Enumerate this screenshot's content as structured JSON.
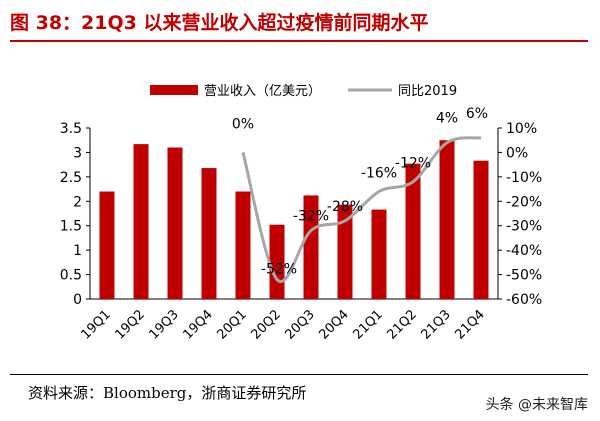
{
  "header": {
    "title": "图 38：21Q3 以来营业收入超过疫情前同期水平"
  },
  "footer": {
    "source": "资料来源：Bloomberg，浙商证券研究所",
    "watermark": "头条 @未来智库"
  },
  "chart_data": {
    "type": "bar",
    "categories": [
      "19Q1",
      "19Q2",
      "19Q3",
      "19Q4",
      "20Q1",
      "20Q2",
      "20Q3",
      "20Q4",
      "21Q1",
      "21Q2",
      "21Q3",
      "21Q4"
    ],
    "series": [
      {
        "name": "营业收入（亿美元）",
        "type": "bar",
        "axis": "left",
        "color": "#c00000",
        "values": [
          2.2,
          3.17,
          3.1,
          2.68,
          2.2,
          1.52,
          2.12,
          1.93,
          1.83,
          2.77,
          3.25,
          2.83
        ]
      },
      {
        "name": "同比2019",
        "type": "line",
        "axis": "right",
        "color": "#a6a6a6",
        "values": [
          null,
          null,
          null,
          null,
          0,
          -52,
          -32,
          -28,
          -16,
          -12,
          4,
          6
        ]
      }
    ],
    "data_labels": [
      {
        "index": 4,
        "text": "0%"
      },
      {
        "index": 5,
        "text": "-52%"
      },
      {
        "index": 6,
        "text": "-32%"
      },
      {
        "index": 7,
        "text": "-28%"
      },
      {
        "index": 8,
        "text": "-16%"
      },
      {
        "index": 9,
        "text": "-12%"
      },
      {
        "index": 10,
        "text": "4%"
      },
      {
        "index": 11,
        "text": "6%"
      }
    ],
    "y_left": {
      "min": 0,
      "max": 3.5,
      "ticks": [
        0,
        0.5,
        1,
        1.5,
        2,
        2.5,
        3,
        3.5
      ],
      "tick_labels": [
        "0",
        "0.5",
        "1",
        "1.5",
        "2",
        "2.5",
        "3",
        "3.5"
      ]
    },
    "y_right": {
      "min": -60,
      "max": 10,
      "ticks": [
        -60,
        -50,
        -40,
        -30,
        -20,
        -10,
        0,
        10
      ],
      "tick_labels": [
        "-60%",
        "-50%",
        "-40%",
        "-30%",
        "-20%",
        "-10%",
        "0%",
        "10%"
      ]
    },
    "grid": false,
    "legend_position": "top"
  }
}
